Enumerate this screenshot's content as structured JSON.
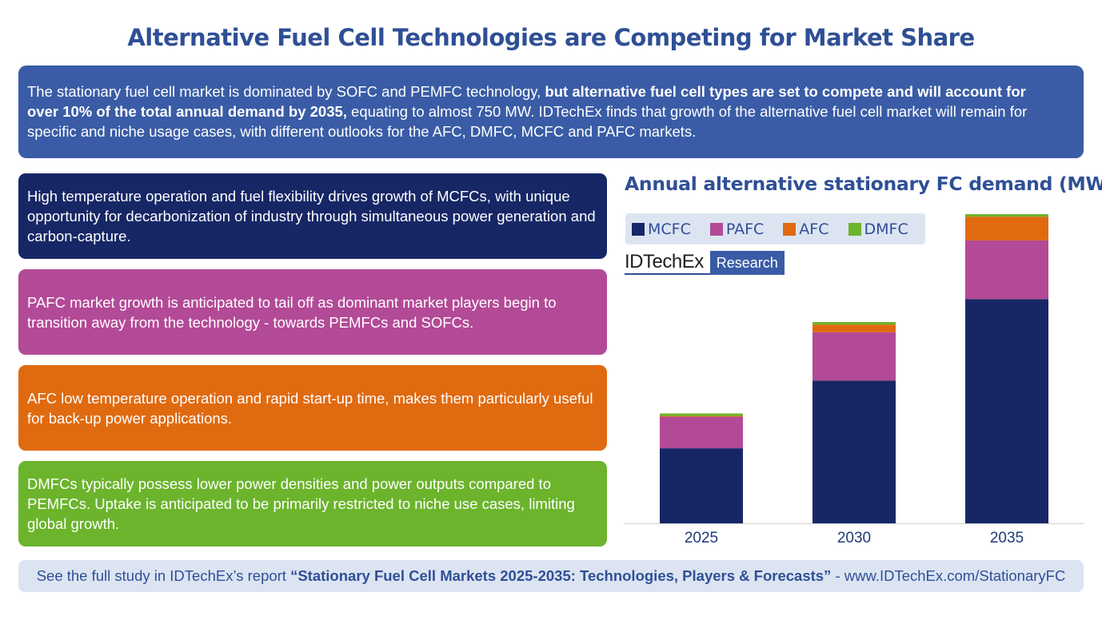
{
  "title": "Alternative Fuel Cell Technologies are Competing for Market Share",
  "intro": {
    "text_a": "The stationary fuel cell market is dominated by SOFC and PEMFC technology,",
    "text_bold": " but alternative fuel cell types are set to compete and will account for over 10% of the total annual demand by 2035,",
    "text_b": " equating to almost 750 MW. IDTechEx finds that growth of the alternative fuel cell market will remain for specific and niche usage cases, with different outlooks for the AFC, DMFC, MCFC and PAFC markets."
  },
  "cards": {
    "mcfc": "High temperature operation and fuel flexibility drives growth of MCFCs, with unique opportunity for decarbonization of industry through simultaneous power generation and carbon-capture.",
    "pafc": "PAFC market growth is anticipated to tail off as dominant market players begin to transition away from the technology - towards PEMFCs and SOFCs.",
    "afc": "AFC low temperature operation and rapid start-up time, makes them particularly useful for back-up power applications.",
    "dmfc": "DMFCs typically possess lower power densities and power outputs compared to PEMFCs. Uptake is anticipated to be primarily restricted to niche use cases, limiting global growth."
  },
  "logo": {
    "word": "IDTechEx",
    "tag": "Research"
  },
  "footer": {
    "prefix": "See the full study in IDTechEx’s report ",
    "report": "“Stationary Fuel Cell Markets 2025-2035: Technologies, Players & Forecasts”",
    "suffix": " - www.IDTechEx.com/StationaryFC"
  },
  "colors": {
    "MCFC": "#172766",
    "PAFC": "#b34a97",
    "AFC": "#e06a10",
    "DMFC": "#6bb42c",
    "title": "#2f4f96"
  },
  "chart_data": {
    "type": "bar",
    "stacked": true,
    "title": "Annual alternative stationary FC demand (MW)",
    "categories": [
      "2025",
      "2030",
      "2035"
    ],
    "series": [
      {
        "name": "MCFC",
        "values": [
          183,
          348,
          547
        ]
      },
      {
        "name": "PAFC",
        "values": [
          77,
          118,
          143
        ]
      },
      {
        "name": "AFC",
        "values": [
          2,
          19,
          58
        ]
      },
      {
        "name": "DMFC",
        "values": [
          6,
          6,
          6
        ]
      }
    ],
    "xlabel": "",
    "ylabel": "",
    "ylim": [
      0,
      760
    ],
    "grid": false,
    "legend": "top-left"
  }
}
